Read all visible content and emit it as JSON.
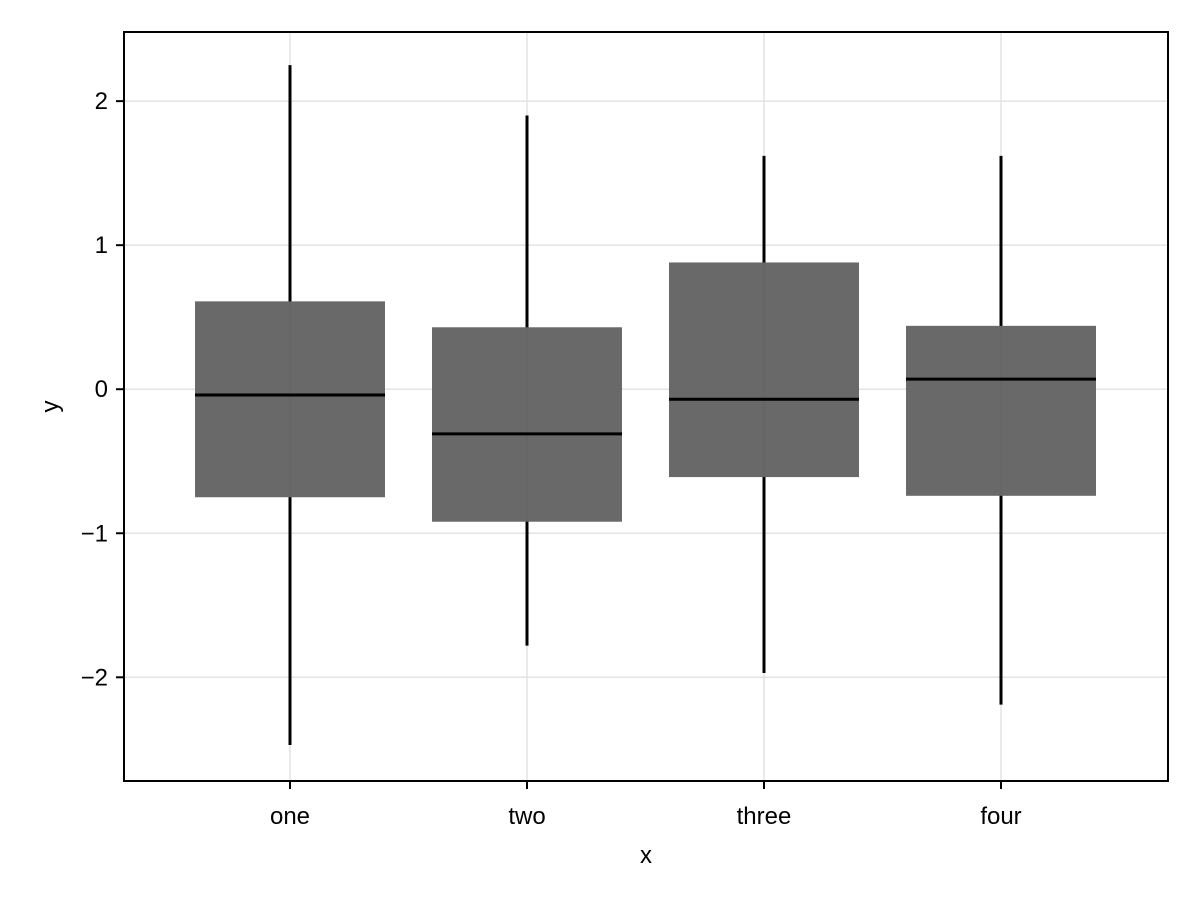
{
  "chart_data": {
    "type": "box",
    "categories": [
      "one",
      "two",
      "three",
      "four"
    ],
    "boxes": [
      {
        "category": "one",
        "whisker_low": -2.47,
        "q1": -0.75,
        "median": -0.04,
        "q3": 0.61,
        "whisker_high": 2.25
      },
      {
        "category": "two",
        "whisker_low": -1.78,
        "q1": -0.92,
        "median": -0.31,
        "q3": 0.43,
        "whisker_high": 1.9
      },
      {
        "category": "three",
        "whisker_low": -1.97,
        "q1": -0.61,
        "median": -0.07,
        "q3": 0.88,
        "whisker_high": 1.62
      },
      {
        "category": "four",
        "whisker_low": -2.19,
        "q1": -0.74,
        "median": 0.07,
        "q3": 0.44,
        "whisker_high": 1.62
      }
    ],
    "xlabel": "x",
    "ylabel": "y",
    "ylim": [
      -2.72,
      2.48
    ],
    "yticks": [
      2,
      1,
      0,
      -1,
      -2
    ],
    "ytick_labels": [
      "2",
      "1",
      "0",
      "−1",
      "−2"
    ],
    "grid": true,
    "colors": {
      "box_fill": "#676767",
      "line": "#000000",
      "grid": "#e3e3e3",
      "frame": "#000000"
    }
  }
}
